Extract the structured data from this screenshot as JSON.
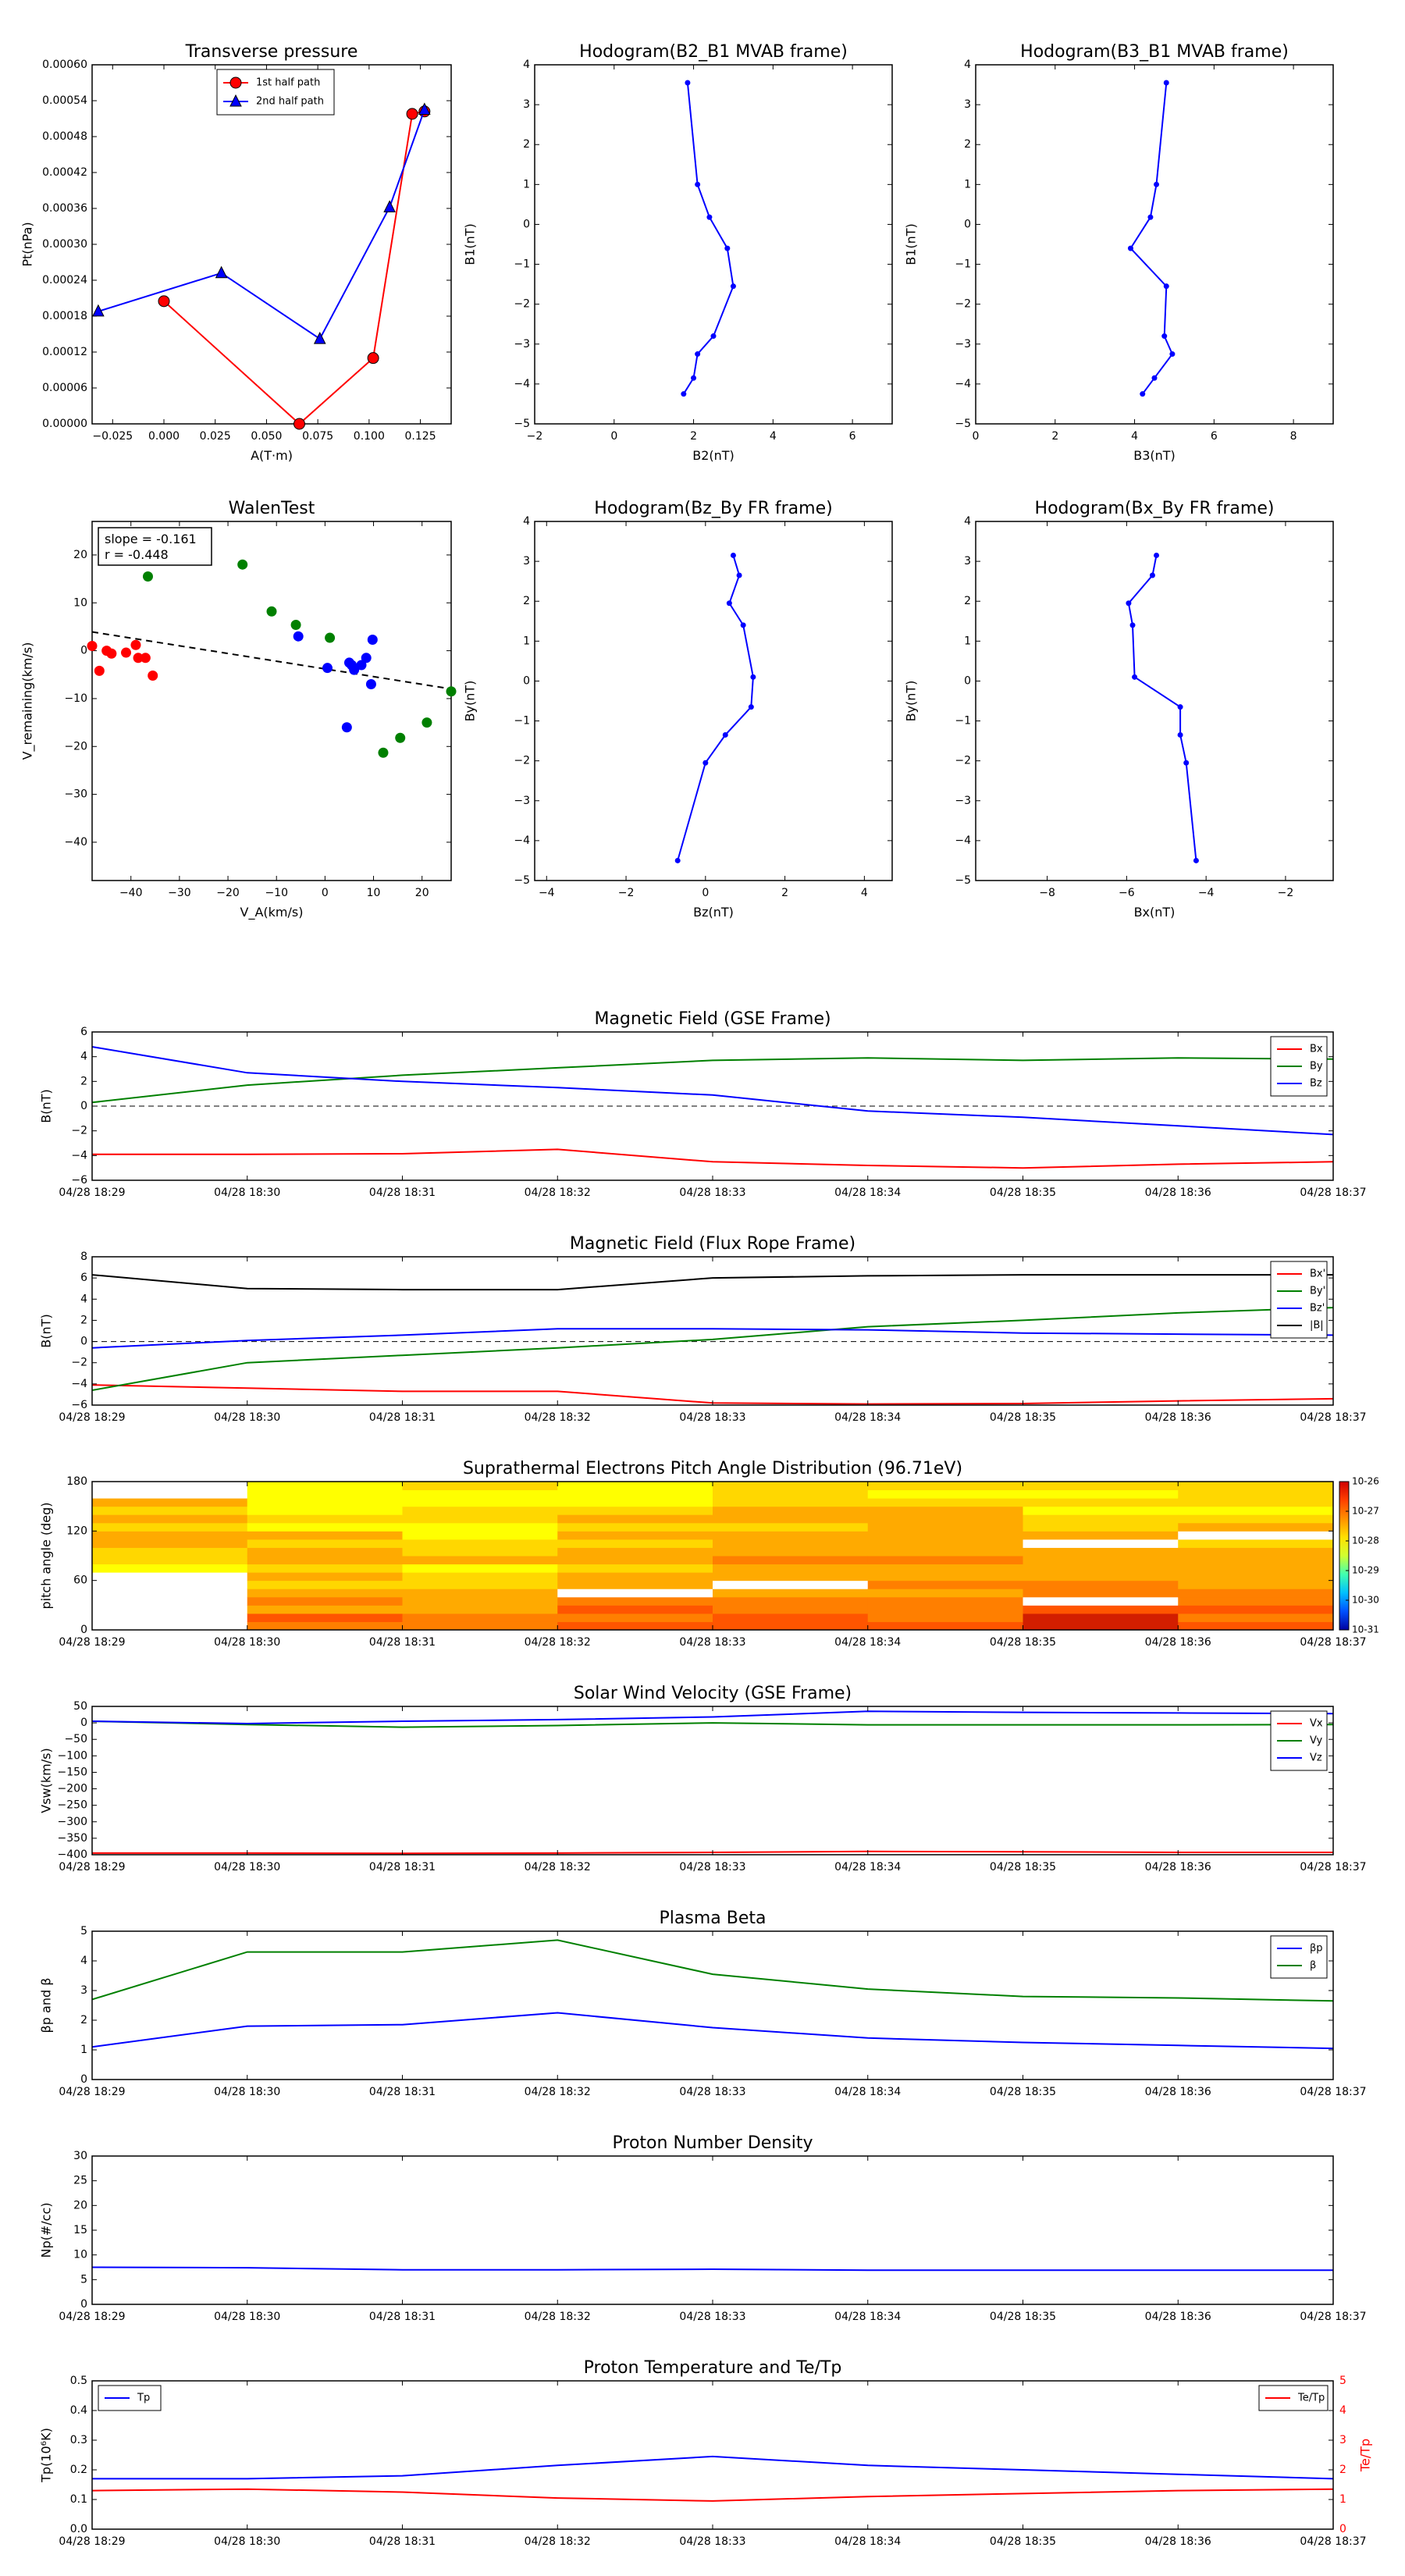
{
  "figure": {
    "time_ticks": [
      "04/28 18:29",
      "04/28 18:30",
      "04/28 18:31",
      "04/28 18:32",
      "04/28 18:33",
      "04/28 18:34",
      "04/28 18:35",
      "04/28 18:36",
      "04/28 18:37"
    ]
  },
  "chart_data": [
    {
      "id": "pt",
      "type": "line",
      "title": "Transverse pressure",
      "xlabel": "A(T·m)",
      "ylabel": "Pt(nPa)",
      "xlim": [
        -0.035,
        0.14
      ],
      "ylim": [
        0,
        0.0006
      ],
      "xticks": [
        -0.025,
        0.0,
        0.025,
        0.05,
        0.075,
        0.1,
        0.125
      ],
      "xtick_labels": [
        "−0.025",
        "0.000",
        "0.025",
        "0.050",
        "0.075",
        "0.100",
        "0.125"
      ],
      "yticks": [
        0,
        6e-05,
        0.00012,
        0.00018,
        0.00024,
        0.0003,
        0.00036,
        0.00042,
        0.00048,
        0.00054,
        0.0006
      ],
      "ytick_labels": [
        "0.00000",
        "0.00006",
        "0.00012",
        "0.00018",
        "0.00024",
        "0.00030",
        "0.00036",
        "0.00042",
        "0.00048",
        "0.00054",
        "0.00060"
      ],
      "legend": "top-center",
      "series": [
        {
          "name": "1st half path",
          "color": "#ff0000",
          "marker": "circle",
          "x": [
            0.0,
            0.066,
            0.102,
            0.121,
            0.127
          ],
          "y": [
            0.000205,
            0.0,
            0.00011,
            0.000518,
            0.000522
          ]
        },
        {
          "name": "2nd half path",
          "color": "#0000ff",
          "marker": "triangle",
          "x": [
            -0.032,
            0.028,
            0.076,
            0.11,
            0.127
          ],
          "y": [
            0.000188,
            0.000252,
            0.000142,
            0.000362,
            0.000525
          ]
        }
      ]
    },
    {
      "id": "h21",
      "type": "line",
      "title": "Hodogram(B2_B1 MVAB frame)",
      "xlabel": "B2(nT)",
      "ylabel": "B1(nT)",
      "xlim": [
        -2,
        7
      ],
      "ylim": [
        -5,
        4
      ],
      "xticks": [
        -2,
        0,
        2,
        4,
        6
      ],
      "xtick_labels": [
        "−2",
        "0",
        "2",
        "4",
        "6"
      ],
      "yticks": [
        -5,
        -4,
        -3,
        -2,
        -1,
        0,
        1,
        2,
        3,
        4
      ],
      "ytick_labels": [
        "−5",
        "−4",
        "−3",
        "−2",
        "−1",
        "0",
        "1",
        "2",
        "3",
        "4"
      ],
      "series": [
        {
          "color": "#0000ff",
          "marker": "dot",
          "x": [
            1.85,
            2.1,
            2.4,
            2.85,
            3.0,
            2.5,
            2.1,
            2.0,
            1.75
          ],
          "y": [
            3.55,
            1.0,
            0.18,
            -0.6,
            -1.55,
            -2.8,
            -3.25,
            -3.85,
            -4.25
          ]
        }
      ]
    },
    {
      "id": "h31",
      "type": "line",
      "title": "Hodogram(B3_B1 MVAB frame)",
      "xlabel": "B3(nT)",
      "ylabel": "B1(nT)",
      "xlim": [
        0,
        9
      ],
      "ylim": [
        -5,
        4
      ],
      "xticks": [
        0,
        2,
        4,
        6,
        8
      ],
      "xtick_labels": [
        "0",
        "2",
        "4",
        "6",
        "8"
      ],
      "yticks": [
        -5,
        -4,
        -3,
        -2,
        -1,
        0,
        1,
        2,
        3,
        4
      ],
      "ytick_labels": [
        "−5",
        "−4",
        "−3",
        "−2",
        "−1",
        "0",
        "1",
        "2",
        "3",
        "4"
      ],
      "series": [
        {
          "color": "#0000ff",
          "marker": "dot",
          "x": [
            4.8,
            4.55,
            4.4,
            3.9,
            4.8,
            4.75,
            4.95,
            4.5,
            4.2
          ],
          "y": [
            3.55,
            1.0,
            0.18,
            -0.6,
            -1.55,
            -2.8,
            -3.25,
            -3.85,
            -4.25
          ]
        }
      ]
    },
    {
      "id": "walen",
      "type": "scatter",
      "title": "WalenTest",
      "xlabel": "V_A(km/s)",
      "ylabel": "V_remaining(km/s)",
      "annotation": [
        "slope = -0.161",
        "r = -0.448"
      ],
      "xlim": [
        -48,
        26
      ],
      "ylim": [
        -48,
        27
      ],
      "xticks": [
        -40,
        -30,
        -20,
        -10,
        0,
        10,
        20
      ],
      "xtick_labels": [
        "−40",
        "−30",
        "−20",
        "−10",
        "0",
        "10",
        "20"
      ],
      "yticks": [
        -40,
        -30,
        -20,
        -10,
        0,
        10,
        20
      ],
      "ytick_labels": [
        "−40",
        "−30",
        "−20",
        "−10",
        "0",
        "10",
        "20"
      ],
      "fit": {
        "slope": -0.161,
        "intercept": -3.8,
        "color": "#000000",
        "style": "dashed"
      },
      "series": [
        {
          "color": "#ff0000",
          "x": [
            -48,
            -46.5,
            -45,
            -44,
            -41,
            -39,
            -38.5,
            -37,
            -35.5
          ],
          "y": [
            1.0,
            -4.2,
            0.0,
            -0.6,
            -0.4,
            1.2,
            -1.5,
            -1.5,
            -5.2
          ]
        },
        {
          "color": "#0000ff",
          "x": [
            -5.5,
            0.5,
            4.5,
            5.0,
            5.5,
            6.0,
            7.5,
            8.5,
            9.5,
            9.8
          ],
          "y": [
            3.0,
            -3.6,
            -16.0,
            -2.5,
            -3.0,
            -4.0,
            -3.0,
            -1.5,
            -7.0,
            2.3
          ]
        },
        {
          "color": "#008000",
          "x": [
            -36.5,
            -17,
            -11,
            -6,
            1.0,
            12,
            15.5,
            21,
            26
          ],
          "y": [
            15.5,
            18.0,
            8.2,
            5.4,
            2.7,
            -21.3,
            -18.2,
            -15.0,
            -8.5
          ]
        }
      ]
    },
    {
      "id": "hzy",
      "type": "line",
      "title": "Hodogram(Bz_By FR frame)",
      "xlabel": "Bz(nT)",
      "ylabel": "By(nT)",
      "xlim": [
        -4.3,
        4.7
      ],
      "ylim": [
        -5,
        4
      ],
      "xticks": [
        -4,
        -2,
        0,
        2,
        4
      ],
      "xtick_labels": [
        "−4",
        "−2",
        "0",
        "2",
        "4"
      ],
      "yticks": [
        -5,
        -4,
        -3,
        -2,
        -1,
        0,
        1,
        2,
        3,
        4
      ],
      "ytick_labels": [
        "−5",
        "−4",
        "−3",
        "−2",
        "−1",
        "0",
        "1",
        "2",
        "3",
        "4"
      ],
      "series": [
        {
          "color": "#0000ff",
          "marker": "dot",
          "x": [
            0.7,
            0.85,
            0.6,
            0.95,
            1.2,
            1.15,
            0.5,
            0.0,
            -0.7
          ],
          "y": [
            3.15,
            2.65,
            1.95,
            1.4,
            0.1,
            -0.65,
            -1.35,
            -2.05,
            -4.5
          ]
        }
      ]
    },
    {
      "id": "hxy",
      "type": "line",
      "title": "Hodogram(Bx_By FR frame)",
      "xlabel": "Bx(nT)",
      "ylabel": "By(nT)",
      "xlim": [
        -9.8,
        -0.8
      ],
      "ylim": [
        -5,
        4
      ],
      "xticks": [
        -8,
        -6,
        -4,
        -2
      ],
      "xtick_labels": [
        "−8",
        "−6",
        "−4",
        "−2"
      ],
      "yticks": [
        -5,
        -4,
        -3,
        -2,
        -1,
        0,
        1,
        2,
        3,
        4
      ],
      "ytick_labels": [
        "−5",
        "−4",
        "−3",
        "−2",
        "−1",
        "0",
        "1",
        "2",
        "3",
        "4"
      ],
      "series": [
        {
          "color": "#0000ff",
          "marker": "dot",
          "x": [
            -5.25,
            -5.35,
            -5.95,
            -5.85,
            -5.8,
            -4.65,
            -4.65,
            -4.5,
            -4.25
          ],
          "y": [
            3.15,
            2.65,
            1.95,
            1.4,
            0.1,
            -0.65,
            -1.35,
            -2.05,
            -4.5
          ]
        }
      ]
    },
    {
      "id": "bgse",
      "type": "line",
      "title": "Magnetic Field (GSE Frame)",
      "ylabel": "B(nT)",
      "x": [
        0,
        1,
        2,
        3,
        4,
        5,
        6,
        7,
        8
      ],
      "ylim": [
        -6,
        6
      ],
      "yticks": [
        -6,
        -4,
        -2,
        0,
        2,
        4,
        6
      ],
      "ytick_labels": [
        "−6",
        "−4",
        "−2",
        "0",
        "2",
        "4",
        "6"
      ],
      "zero_line": true,
      "legend": "top-right",
      "series": [
        {
          "name": "Bx",
          "color": "#ff0000",
          "values": [
            -3.9,
            -3.9,
            -3.85,
            -3.5,
            -4.5,
            -4.8,
            -5.0,
            -4.7,
            -4.5
          ]
        },
        {
          "name": "By",
          "color": "#008000",
          "values": [
            0.3,
            1.7,
            2.5,
            3.1,
            3.7,
            3.9,
            3.7,
            3.9,
            3.8
          ]
        },
        {
          "name": "Bz",
          "color": "#0000ff",
          "values": [
            4.8,
            2.7,
            2.0,
            1.5,
            0.9,
            -0.4,
            -0.9,
            -1.6,
            -2.3
          ]
        }
      ]
    },
    {
      "id": "bfr",
      "type": "line",
      "title": "Magnetic Field (Flux Rope Frame)",
      "ylabel": "B(nT)",
      "x": [
        0,
        1,
        2,
        3,
        4,
        5,
        6,
        7,
        8
      ],
      "ylim": [
        -6,
        8
      ],
      "yticks": [
        -6,
        -4,
        -2,
        0,
        2,
        4,
        6,
        8
      ],
      "ytick_labels": [
        "−6",
        "−4",
        "−2",
        "0",
        "2",
        "4",
        "6",
        "8"
      ],
      "zero_line": true,
      "legend": "top-right",
      "series": [
        {
          "name": "Bx'",
          "color": "#ff0000",
          "values": [
            -4.1,
            -4.4,
            -4.7,
            -4.7,
            -5.8,
            -5.9,
            -5.85,
            -5.6,
            -5.4
          ]
        },
        {
          "name": "By'",
          "color": "#008000",
          "values": [
            -4.6,
            -2.0,
            -1.3,
            -0.6,
            0.2,
            1.4,
            2.0,
            2.7,
            3.2
          ]
        },
        {
          "name": "Bz'",
          "color": "#0000ff",
          "values": [
            -0.6,
            0.1,
            0.6,
            1.2,
            1.2,
            1.1,
            0.8,
            0.7,
            0.6
          ]
        },
        {
          "name": "|B|",
          "color": "#000000",
          "values": [
            6.3,
            5.0,
            4.9,
            4.9,
            6.0,
            6.2,
            6.3,
            6.3,
            6.3
          ]
        }
      ]
    },
    {
      "id": "pad",
      "type": "heatmap",
      "title": "Suprathermal Electrons Pitch Angle Distribution (96.71eV)",
      "ylabel": "pitch angle (deg)",
      "ylim": [
        0,
        180
      ],
      "yticks": [
        0,
        60,
        120,
        180
      ],
      "ytick_labels": [
        "0",
        "60",
        "120",
        "180"
      ],
      "colorbar_ticks": [
        "10-26",
        "10-27",
        "10-28",
        "10-29",
        "10-30",
        "10-31"
      ],
      "colormap": [
        "#ffffff",
        "#ffff00",
        "#ffd700",
        "#ffaa00",
        "#ff7f00",
        "#ff5500",
        "#d21e00"
      ],
      "columns": [
        [
          0,
          0,
          0,
          0,
          0,
          0,
          0,
          1,
          2,
          2,
          3,
          3,
          2,
          3,
          2,
          3,
          0,
          0
        ],
        [
          4,
          5,
          3,
          4,
          3,
          2,
          3,
          2,
          3,
          3,
          2,
          3,
          1,
          2,
          1,
          1,
          1,
          1
        ],
        [
          4,
          4,
          3,
          3,
          3,
          2,
          2,
          1,
          3,
          2,
          2,
          1,
          1,
          2,
          2,
          1,
          1,
          2
        ],
        [
          5,
          4,
          5,
          4,
          0,
          3,
          3,
          2,
          3,
          3,
          2,
          3,
          2,
          3,
          2,
          1,
          1,
          1
        ],
        [
          5,
          5,
          4,
          4,
          3,
          0,
          3,
          3,
          4,
          3,
          3,
          3,
          2,
          3,
          3,
          2,
          2,
          2
        ],
        [
          5,
          4,
          4,
          4,
          3,
          4,
          3,
          3,
          4,
          3,
          3,
          3,
          3,
          3,
          3,
          2,
          1,
          2
        ],
        [
          6,
          6,
          5,
          0,
          4,
          4,
          3,
          3,
          3,
          3,
          0,
          3,
          2,
          2,
          1,
          2,
          1,
          2
        ],
        [
          5,
          4,
          5,
          4,
          4,
          3,
          3,
          3,
          3,
          3,
          2,
          0,
          3,
          2,
          1,
          2,
          2,
          2
        ]
      ]
    },
    {
      "id": "vsw",
      "type": "line",
      "title": "Solar Wind Velocity (GSE Frame)",
      "ylabel": "Vsw(km/s)",
      "x": [
        0,
        1,
        2,
        3,
        4,
        5,
        6,
        7,
        8
      ],
      "ylim": [
        -400,
        50
      ],
      "yticks": [
        -400,
        -350,
        -300,
        -250,
        -200,
        -150,
        -100,
        -50,
        0,
        50
      ],
      "ytick_labels": [
        "−400",
        "−350",
        "−300",
        "−250",
        "−200",
        "−150",
        "−100",
        "−50",
        "0",
        "50"
      ],
      "legend": "top-right",
      "series": [
        {
          "name": "Vx",
          "color": "#ff0000",
          "values": [
            -395,
            -395,
            -396,
            -395,
            -393,
            -390,
            -391,
            -393,
            -393
          ]
        },
        {
          "name": "Vy",
          "color": "#008000",
          "values": [
            5,
            -5,
            -13,
            -8,
            0,
            -6,
            -6,
            -6,
            -5
          ]
        },
        {
          "name": "Vz",
          "color": "#0000ff",
          "values": [
            5,
            -2,
            5,
            10,
            18,
            35,
            32,
            30,
            28
          ]
        }
      ]
    },
    {
      "id": "beta",
      "type": "line",
      "title": "Plasma Beta",
      "ylabel": "βp and β",
      "x": [
        0,
        1,
        2,
        3,
        4,
        5,
        6,
        7,
        8
      ],
      "ylim": [
        0,
        5
      ],
      "yticks": [
        0,
        1,
        2,
        3,
        4,
        5
      ],
      "ytick_labels": [
        "0",
        "1",
        "2",
        "3",
        "4",
        "5"
      ],
      "legend": "top-right",
      "series": [
        {
          "name": "βp",
          "color": "#0000ff",
          "values": [
            1.1,
            1.8,
            1.85,
            2.25,
            1.75,
            1.4,
            1.25,
            1.15,
            1.05
          ]
        },
        {
          "name": "β",
          "color": "#008000",
          "values": [
            2.7,
            4.3,
            4.3,
            4.7,
            3.55,
            3.05,
            2.8,
            2.75,
            2.65
          ]
        }
      ]
    },
    {
      "id": "np",
      "type": "line",
      "title": "Proton Number Density",
      "ylabel": "Np(#/cc)",
      "x": [
        0,
        1,
        2,
        3,
        4,
        5,
        6,
        7,
        8
      ],
      "ylim": [
        0,
        30
      ],
      "yticks": [
        0,
        5,
        10,
        15,
        20,
        25,
        30
      ],
      "ytick_labels": [
        "0",
        "5",
        "10",
        "15",
        "20",
        "25",
        "30"
      ],
      "series": [
        {
          "color": "#0000ff",
          "values": [
            7.5,
            7.4,
            7.0,
            7.0,
            7.1,
            6.9,
            6.9,
            6.9,
            6.9
          ]
        }
      ]
    },
    {
      "id": "tp",
      "type": "line",
      "title": "Proton Temperature and Te/Tp",
      "ylabel": "Tp(10⁶K)",
      "y2label": "Te/Tp",
      "x": [
        0,
        1,
        2,
        3,
        4,
        5,
        6,
        7,
        8
      ],
      "ylim": [
        0,
        0.5
      ],
      "yticks": [
        0,
        0.1,
        0.2,
        0.3,
        0.4,
        0.5
      ],
      "ytick_labels": [
        "0.0",
        "0.1",
        "0.2",
        "0.3",
        "0.4",
        "0.5"
      ],
      "y2lim": [
        0,
        5
      ],
      "y2ticks": [
        0,
        1,
        2,
        3,
        4,
        5
      ],
      "y2tick_labels": [
        "0",
        "1",
        "2",
        "3",
        "4",
        "5"
      ],
      "legend_left": "top-left",
      "legend_right": "top-right",
      "series": [
        {
          "name": "Tp",
          "color": "#0000ff",
          "axis": "left",
          "values": [
            0.17,
            0.17,
            0.18,
            0.215,
            0.245,
            0.215,
            0.2,
            0.185,
            0.17
          ]
        },
        {
          "name": "Te/Tp",
          "color": "#ff0000",
          "axis": "right",
          "values": [
            1.3,
            1.35,
            1.25,
            1.05,
            0.95,
            1.1,
            1.2,
            1.3,
            1.35
          ]
        }
      ]
    }
  ]
}
